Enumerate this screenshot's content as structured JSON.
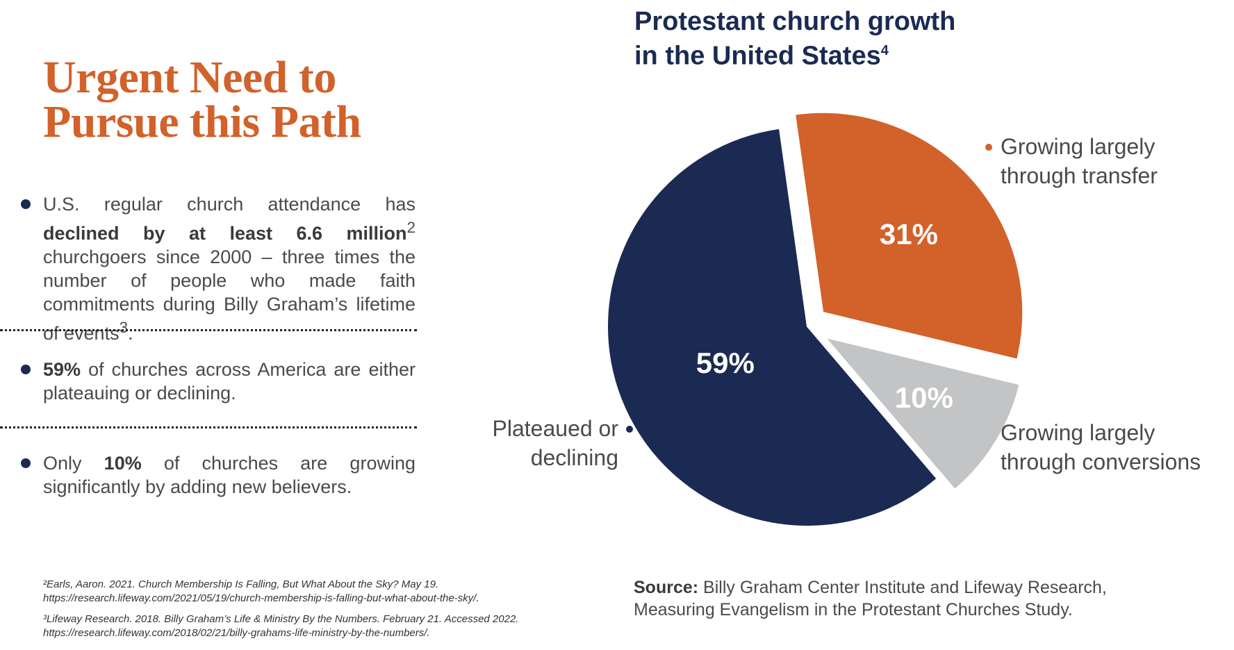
{
  "heading": {
    "line1": "Urgent Need to",
    "line2": "Pursue this Path"
  },
  "bullets": [
    {
      "pre": "U.S. regular church attendance has ",
      "bold": "declined by at least 6.6 million",
      "sup": "2",
      "post": " churchgoers since 2000 – three times the number of people who made faith commitments during Billy Graham’s lifetime of events",
      "sup2": "3",
      "end": "."
    },
    {
      "bold": "59%",
      "post": " of churches across America are either plateauing or declining."
    },
    {
      "pre": "Only ",
      "bold": "10%",
      "post": " of churches are growing significantly by adding new believers."
    }
  ],
  "footnotes": [
    "²Earls, Aaron. 2021. Church Membership Is Falling, But What About the Sky? May 19. https://research.lifeway.com/2021/05/19/church-membership-is-falling-but-what-about-the-sky/.",
    "³Lifeway Research. 2018. Billy Graham’s Life & Ministry By the Numbers. February 21. Accessed 2022. https://research.lifeway.com/2018/02/21/billy-grahams-life-ministry-by-the-numbers/."
  ],
  "chart_data": {
    "type": "pie",
    "title": "Protestant church growth in the United States",
    "title_line1": "Protestant church growth",
    "title_line2": "in the United States",
    "title_sup": "4",
    "slices": [
      {
        "label": "Growing largely through transfer",
        "label_lines": [
          "Growing largely",
          "through transfer"
        ],
        "value": 31,
        "display": "31%",
        "color": "#d2612a",
        "text_color": "#ffffff",
        "exploded": true,
        "legend_side": "right"
      },
      {
        "label": "Growing largely through conversions",
        "label_lines": [
          "Growing largely",
          "through conversions"
        ],
        "value": 10,
        "display": "10%",
        "color": "#c2c4c5",
        "text_color": "#ffffff",
        "exploded": true,
        "legend_side": "right"
      },
      {
        "label": "Plateaued or declining",
        "label_lines": [
          "Plateaued or",
          "declining"
        ],
        "value": 59,
        "display": "59%",
        "color": "#1b2a52",
        "text_color": "#ffffff",
        "exploded": false,
        "legend_side": "left"
      }
    ],
    "start_angle_deg": -8
  },
  "source": {
    "label": "Source:",
    "line1": " Billy Graham Center Institute and Lifeway Research,",
    "line2": "Measuring Evangelism in the Protestant Churches Study."
  }
}
